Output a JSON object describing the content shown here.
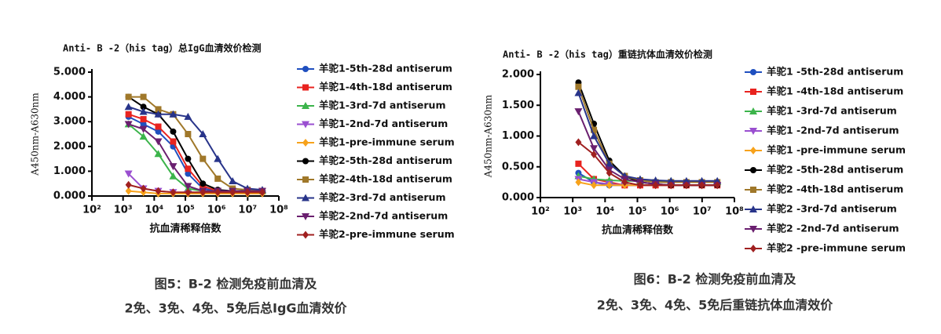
{
  "chart_data": [
    {
      "type": "line",
      "title": "Anti- B -2（his tag）总IgG血清效价检测",
      "x_label": "抗血清稀释倍数",
      "y_label": "A450nm-A630nm",
      "xscale": "log",
      "grid": false,
      "caption": [
        "图5：B-2 检测免疫前血清及",
        "2免、3免、4免、5免后总IgG血清效价"
      ],
      "x": [
        1500,
        4500,
        13500,
        40500,
        121500,
        364500,
        1093500,
        3280500,
        9841500,
        29524500
      ],
      "xlim": [
        100,
        100000000
      ],
      "xticks": [
        {
          "value": 100,
          "label": "10²"
        },
        {
          "value": 1000,
          "label": "10³"
        },
        {
          "value": 10000,
          "label": "10⁴"
        },
        {
          "value": 100000,
          "label": "10⁵"
        },
        {
          "value": 1000000,
          "label": "10⁶"
        },
        {
          "value": 10000000,
          "label": "10⁷"
        },
        {
          "value": 100000000,
          "label": "10⁸"
        }
      ],
      "ylim": [
        0,
        5
      ],
      "yticks": [
        {
          "value": 0,
          "label": "0.000"
        },
        {
          "value": 1,
          "label": "1.000"
        },
        {
          "value": 2,
          "label": "2.000"
        },
        {
          "value": 3,
          "label": "3.000"
        },
        {
          "value": 4,
          "label": "4.000"
        },
        {
          "value": 5,
          "label": "5.000"
        }
      ],
      "series": [
        {
          "name": "羊驼1-5th-28d antiserum",
          "color": "#1f4fbf",
          "marker": "circle",
          "values": [
            3.2,
            2.9,
            2.6,
            2.0,
            0.9,
            0.3,
            0.2,
            0.2,
            0.2,
            0.2
          ]
        },
        {
          "name": "羊驼1-4th-18d antiserum",
          "color": "#e8231f",
          "marker": "square",
          "values": [
            3.3,
            3.1,
            2.8,
            2.2,
            1.1,
            0.4,
            0.2,
            0.2,
            0.2,
            0.2
          ]
        },
        {
          "name": "羊驼1-3rd-7d antiserum",
          "color": "#3cb44b",
          "marker": "triangle-up",
          "values": [
            2.9,
            2.4,
            1.7,
            0.8,
            0.3,
            0.2,
            0.2,
            0.2,
            0.2,
            0.2
          ]
        },
        {
          "name": "羊驼1-2nd-7d antiserum",
          "color": "#9a4fd0",
          "marker": "triangle-down",
          "values": [
            0.9,
            0.3,
            0.2,
            0.15,
            0.1,
            0.1,
            0.1,
            0.1,
            0.1,
            0.1
          ]
        },
        {
          "name": "羊驼1-pre-immune serum",
          "color": "#f7a21b",
          "marker": "diamond",
          "values": [
            0.2,
            0.15,
            0.1,
            0.1,
            0.1,
            0.1,
            0.1,
            0.1,
            0.1,
            0.1
          ]
        },
        {
          "name": "羊驼2-5th-28d antiserum",
          "color": "#000000",
          "marker": "circle",
          "values": [
            4.0,
            3.6,
            3.3,
            2.6,
            1.5,
            0.5,
            0.25,
            0.2,
            0.2,
            0.2
          ]
        },
        {
          "name": "羊驼2-4th-18d antiserum",
          "color": "#a0782a",
          "marker": "square",
          "values": [
            4.0,
            4.0,
            3.5,
            3.3,
            2.5,
            1.5,
            0.7,
            0.3,
            0.25,
            0.2
          ]
        },
        {
          "name": "羊驼2-3rd-7d antiserum",
          "color": "#28348a",
          "marker": "triangle-up",
          "values": [
            3.6,
            3.4,
            3.3,
            3.3,
            3.2,
            2.5,
            1.5,
            0.6,
            0.3,
            0.25
          ]
        },
        {
          "name": "羊驼2-2nd-7d antiserum",
          "color": "#6a1f6f",
          "marker": "triangle-down",
          "values": [
            2.9,
            2.7,
            2.2,
            1.2,
            0.4,
            0.2,
            0.2,
            0.2,
            0.2,
            0.2
          ]
        },
        {
          "name": "羊驼2-pre-immune serum",
          "color": "#a02020",
          "marker": "diamond",
          "values": [
            0.45,
            0.3,
            0.2,
            0.15,
            0.15,
            0.15,
            0.15,
            0.15,
            0.15,
            0.15
          ]
        }
      ]
    },
    {
      "type": "line",
      "title": "Anti- B -2（his tag）重链抗体血清效价检测",
      "x_label": "抗血清稀释倍数",
      "y_label": "A450nm-A630nm",
      "xscale": "log",
      "grid": false,
      "caption": [
        "图6：B-2 检测免疫前血清及",
        "2免、3免、4免、5免后重链抗体血清效价"
      ],
      "x": [
        1500,
        4500,
        13500,
        40500,
        121500,
        364500,
        1093500,
        3280500,
        9841500,
        29524500
      ],
      "xlim": [
        100,
        100000000
      ],
      "xticks": [
        {
          "value": 100,
          "label": "10²"
        },
        {
          "value": 1000,
          "label": "10³"
        },
        {
          "value": 10000,
          "label": "10⁴"
        },
        {
          "value": 100000,
          "label": "10⁵"
        },
        {
          "value": 1000000,
          "label": "10⁶"
        },
        {
          "value": 10000000,
          "label": "10⁷"
        },
        {
          "value": 100000000,
          "label": "10⁸"
        }
      ],
      "ylim": [
        0,
        2
      ],
      "yticks": [
        {
          "value": 0,
          "label": "0.000"
        },
        {
          "value": 0.5,
          "label": "0.500"
        },
        {
          "value": 1,
          "label": "1.000"
        },
        {
          "value": 1.5,
          "label": "1.500"
        },
        {
          "value": 2,
          "label": "2.000"
        }
      ],
      "series": [
        {
          "name": "羊驼1 -5th-28d antiserum",
          "color": "#1f4fbf",
          "marker": "circle",
          "values": [
            0.4,
            0.25,
            0.2,
            0.2,
            0.2,
            0.2,
            0.2,
            0.2,
            0.2,
            0.2
          ]
        },
        {
          "name": "羊驼1 -4th-18d antiserum",
          "color": "#e8231f",
          "marker": "square",
          "values": [
            0.55,
            0.3,
            0.25,
            0.2,
            0.2,
            0.2,
            0.2,
            0.2,
            0.2,
            0.2
          ]
        },
        {
          "name": "羊驼1 -3rd-7d antiserum",
          "color": "#3cb44b",
          "marker": "triangle-up",
          "values": [
            0.35,
            0.3,
            0.28,
            0.27,
            0.27,
            0.27,
            0.27,
            0.26,
            0.26,
            0.26
          ]
        },
        {
          "name": "羊驼1 -2nd-7d antiserum",
          "color": "#9a4fd0",
          "marker": "triangle-down",
          "values": [
            0.3,
            0.25,
            0.22,
            0.2,
            0.2,
            0.2,
            0.2,
            0.2,
            0.2,
            0.2
          ]
        },
        {
          "name": "羊驼1 -pre-immune serum",
          "color": "#f7a21b",
          "marker": "diamond",
          "values": [
            0.25,
            0.2,
            0.2,
            0.2,
            0.2,
            0.2,
            0.2,
            0.2,
            0.2,
            0.2
          ]
        },
        {
          "name": "羊驼2 -5th-28d antiserum",
          "color": "#000000",
          "marker": "circle",
          "values": [
            1.87,
            1.2,
            0.6,
            0.35,
            0.25,
            0.22,
            0.2,
            0.2,
            0.2,
            0.2
          ]
        },
        {
          "name": "羊驼2 -4th-18d antiserum",
          "color": "#a0782a",
          "marker": "square",
          "values": [
            1.8,
            1.1,
            0.55,
            0.35,
            0.28,
            0.25,
            0.25,
            0.25,
            0.25,
            0.25
          ]
        },
        {
          "name": "羊驼2 -3rd-7d antiserum",
          "color": "#28348a",
          "marker": "triangle-up",
          "values": [
            1.7,
            1.0,
            0.55,
            0.35,
            0.3,
            0.28,
            0.27,
            0.27,
            0.27,
            0.27
          ]
        },
        {
          "name": "羊驼2 -2nd-7d antiserum",
          "color": "#6a1f6f",
          "marker": "triangle-down",
          "values": [
            1.4,
            0.8,
            0.45,
            0.3,
            0.25,
            0.22,
            0.2,
            0.2,
            0.2,
            0.2
          ]
        },
        {
          "name": "羊驼2 -pre-immune serum",
          "color": "#a02020",
          "marker": "diamond",
          "values": [
            0.9,
            0.7,
            0.4,
            0.25,
            0.2,
            0.2,
            0.2,
            0.2,
            0.2,
            0.2
          ]
        }
      ]
    }
  ]
}
